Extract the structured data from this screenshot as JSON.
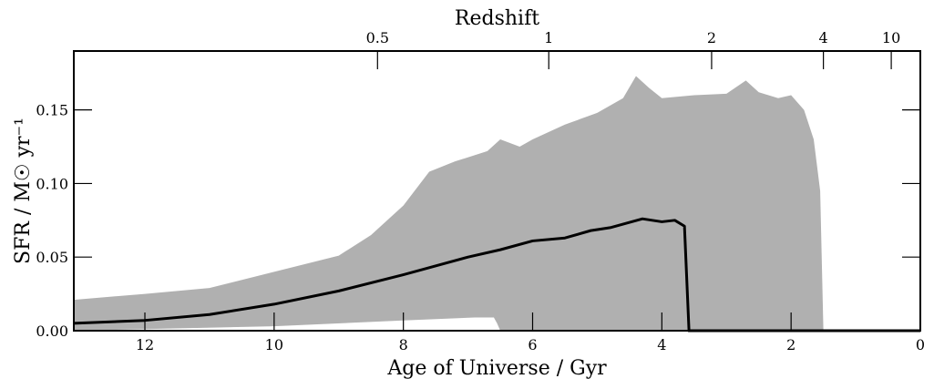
{
  "chart_data": {
    "type": "area",
    "xlabel": "Age of Universe / Gyr",
    "ylabel": "SFR / M☉ yr⁻¹",
    "top_axis_label": "Redshift",
    "xlim": [
      13.1,
      0
    ],
    "ylim": [
      0,
      0.19
    ],
    "x_ticks": [
      12,
      10,
      8,
      6,
      4,
      2,
      0
    ],
    "y_ticks": [
      0.0,
      0.05,
      0.1,
      0.15
    ],
    "y_tick_labels": [
      "0.00",
      "0.05",
      "0.10",
      "0.15"
    ],
    "top_ticks": [
      {
        "label": "0.5",
        "age": 8.4
      },
      {
        "label": "1",
        "age": 5.75
      },
      {
        "label": "2",
        "age": 3.23
      },
      {
        "label": "4",
        "age": 1.5
      },
      {
        "label": "10",
        "age": 0.45
      }
    ],
    "colors": {
      "band": "#b0b0b0",
      "line": "#000000"
    },
    "band_upper": [
      [
        13.1,
        0.021
      ],
      [
        12.0,
        0.025
      ],
      [
        11.0,
        0.029
      ],
      [
        10.0,
        0.04
      ],
      [
        9.0,
        0.051
      ],
      [
        8.5,
        0.065
      ],
      [
        8.0,
        0.085
      ],
      [
        7.6,
        0.108
      ],
      [
        7.2,
        0.115
      ],
      [
        6.7,
        0.122
      ],
      [
        6.5,
        0.13
      ],
      [
        6.2,
        0.125
      ],
      [
        6.0,
        0.13
      ],
      [
        5.5,
        0.14
      ],
      [
        5.0,
        0.148
      ],
      [
        4.6,
        0.158
      ],
      [
        4.4,
        0.173
      ],
      [
        4.2,
        0.165
      ],
      [
        4.0,
        0.158
      ],
      [
        3.5,
        0.16
      ],
      [
        3.0,
        0.161
      ],
      [
        2.7,
        0.17
      ],
      [
        2.5,
        0.162
      ],
      [
        2.2,
        0.158
      ],
      [
        2.0,
        0.16
      ],
      [
        1.8,
        0.15
      ],
      [
        1.65,
        0.13
      ],
      [
        1.55,
        0.095
      ],
      [
        1.5,
        0.0
      ]
    ],
    "band_lower": [
      [
        13.1,
        0.0
      ],
      [
        10.0,
        0.003
      ],
      [
        8.0,
        0.007
      ],
      [
        6.9,
        0.009
      ],
      [
        6.6,
        0.009
      ],
      [
        6.55,
        0.005
      ],
      [
        6.5,
        0.0
      ],
      [
        1.5,
        0.0
      ]
    ],
    "median_line": [
      [
        13.1,
        0.005
      ],
      [
        12.0,
        0.007
      ],
      [
        11.0,
        0.011
      ],
      [
        10.0,
        0.018
      ],
      [
        9.0,
        0.027
      ],
      [
        8.0,
        0.038
      ],
      [
        7.0,
        0.05
      ],
      [
        6.5,
        0.055
      ],
      [
        6.0,
        0.061
      ],
      [
        5.5,
        0.063
      ],
      [
        5.1,
        0.068
      ],
      [
        4.8,
        0.07
      ],
      [
        4.3,
        0.076
      ],
      [
        4.0,
        0.074
      ],
      [
        3.8,
        0.075
      ],
      [
        3.65,
        0.071
      ],
      [
        3.58,
        0.0
      ],
      [
        0.0,
        0.0
      ]
    ]
  }
}
